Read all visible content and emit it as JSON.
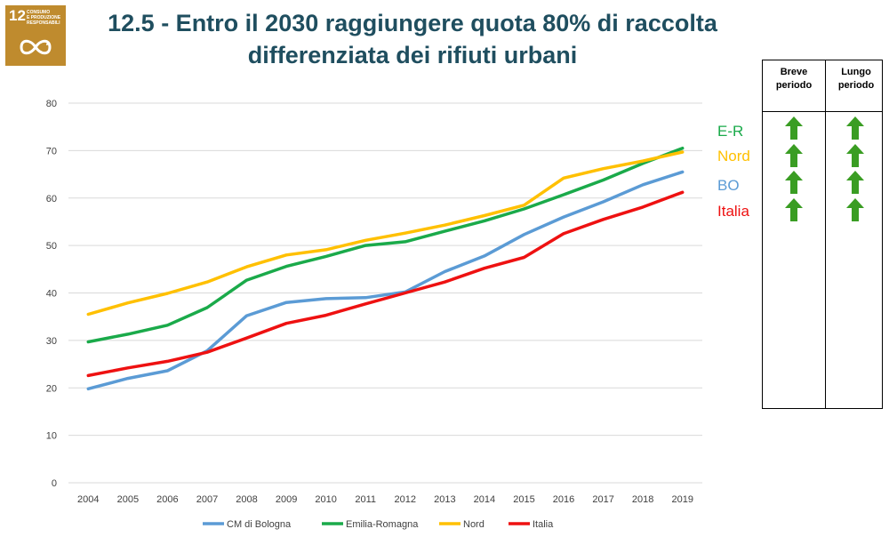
{
  "sdg": {
    "number": "12",
    "text_lines": [
      "Consumo",
      "e produzione",
      "responsabili"
    ],
    "color": "#bf8b2e",
    "icon": "infinity-loop-icon"
  },
  "title": {
    "line1": "12.5 - Entro il 2030 raggiungere quota 80% di raccolta",
    "line2": "differenziata dei rifiuti urbani",
    "color": "#1f4e5f"
  },
  "chart_data": {
    "type": "line",
    "x": [
      "2004",
      "2005",
      "2006",
      "2007",
      "2008",
      "2009",
      "2010",
      "2011",
      "2012",
      "2013",
      "2014",
      "2015",
      "2016",
      "2017",
      "2018",
      "2019"
    ],
    "ylim": [
      0,
      80
    ],
    "yticks": [
      0,
      10,
      20,
      30,
      40,
      50,
      60,
      70,
      80
    ],
    "grid": true,
    "legend_position": "bottom",
    "series": [
      {
        "name": "CM di Bologna",
        "color": "#5b9bd5",
        "values": [
          19.8,
          22.0,
          23.6,
          27.8,
          35.2,
          38.0,
          38.8,
          39.0,
          40.2,
          44.5,
          47.8,
          52.3,
          56.0,
          59.2,
          62.8,
          65.5
        ]
      },
      {
        "name": "Emilia-Romagna",
        "color": "#1aaa4a",
        "values": [
          29.7,
          31.3,
          33.2,
          36.9,
          42.7,
          45.6,
          47.7,
          50.0,
          50.8,
          53.0,
          55.2,
          57.7,
          60.7,
          63.8,
          67.3,
          70.5
        ]
      },
      {
        "name": "Nord",
        "color": "#ffc000",
        "values": [
          35.5,
          37.9,
          39.9,
          42.3,
          45.5,
          48.0,
          49.1,
          51.1,
          52.6,
          54.3,
          56.3,
          58.5,
          64.2,
          66.2,
          67.8,
          69.7
        ]
      },
      {
        "name": "Italia",
        "color": "#ee1111",
        "values": [
          22.6,
          24.2,
          25.6,
          27.5,
          30.5,
          33.6,
          35.3,
          37.7,
          40.0,
          42.3,
          45.2,
          47.5,
          52.5,
          55.5,
          58.1,
          61.2
        ]
      }
    ]
  },
  "trend_table": {
    "col1_header": [
      "Breve",
      "periodo"
    ],
    "col2_header": [
      "Lungo",
      "periodo"
    ],
    "arrow_color": "#3a9d23",
    "rows": [
      {
        "label": "E-R",
        "color": "#1aaa4a",
        "short": "up-arrow-icon",
        "long": "up-arrow-icon"
      },
      {
        "label": "Nord",
        "color": "#ffc000",
        "short": "up-arrow-icon",
        "long": "up-arrow-icon"
      },
      {
        "label": "BO",
        "color": "#5b9bd5",
        "short": "up-arrow-icon",
        "long": "up-arrow-icon"
      },
      {
        "label": "Italia",
        "color": "#ee1111",
        "short": "up-arrow-icon",
        "long": "up-arrow-icon"
      }
    ]
  }
}
